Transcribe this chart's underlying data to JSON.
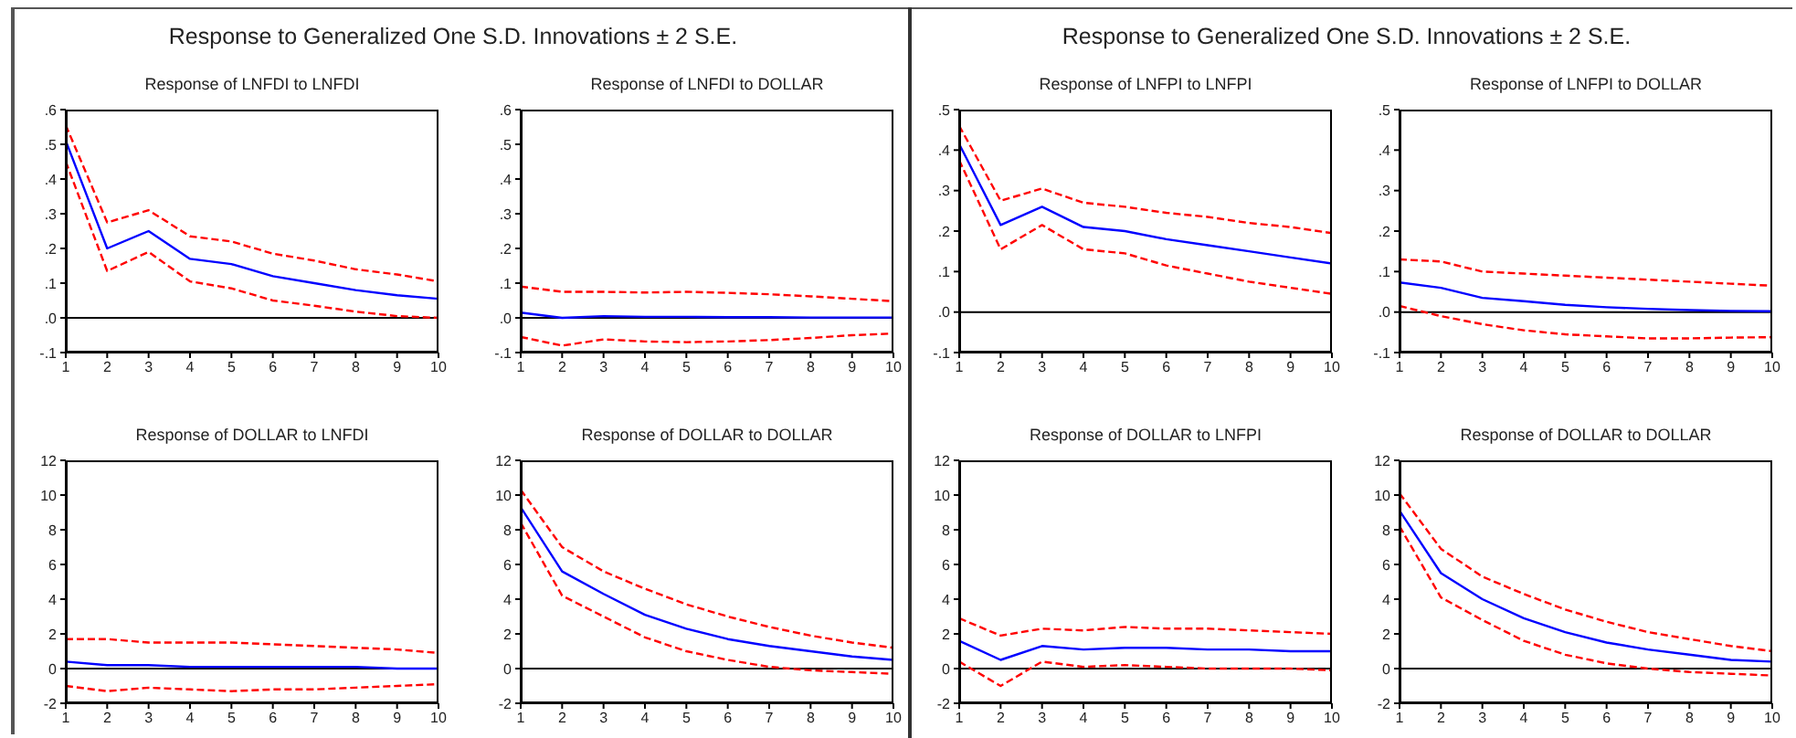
{
  "chart_data": [
    {
      "type": "line",
      "title": "Response of LNFDI to LNFDI",
      "annotations": [
        "Response to Generalized One S.D. Innovations ± 2 S.E."
      ],
      "x": [
        1,
        2,
        3,
        4,
        5,
        6,
        7,
        8,
        9,
        10
      ],
      "xlim": [
        1,
        10
      ],
      "xticks": [
        1,
        2,
        3,
        4,
        5,
        6,
        7,
        8,
        9,
        10
      ],
      "ylim": [
        -0.1,
        0.6
      ],
      "yticks": [
        {
          "value": -0.1,
          "label": "-.1"
        },
        {
          "value": 0,
          "label": ".0"
        },
        {
          "value": 0.1,
          "label": ".1"
        },
        {
          "value": 0.2,
          "label": ".2"
        },
        {
          "value": 0.3,
          "label": ".3"
        },
        {
          "value": 0.4,
          "label": ".4"
        },
        {
          "value": 0.5,
          "label": ".5"
        },
        {
          "value": 0.6,
          "label": ".6"
        }
      ],
      "ref_lines": [
        {
          "axis": "y",
          "value": 0,
          "color": "#000000"
        }
      ],
      "series": [
        {
          "color": "#0000ff",
          "line_style": "solid",
          "values": [
            0.51,
            0.2,
            0.25,
            0.17,
            0.155,
            0.12,
            0.1,
            0.08,
            0.065,
            0.055
          ]
        },
        {
          "color": "#ff0000",
          "line_style": "dashed",
          "values": [
            0.555,
            0.275,
            0.31,
            0.235,
            0.22,
            0.185,
            0.165,
            0.14,
            0.125,
            0.105
          ]
        },
        {
          "color": "#ff0000",
          "line_style": "dashed",
          "values": [
            0.45,
            0.135,
            0.19,
            0.105,
            0.085,
            0.05,
            0.035,
            0.018,
            0.005,
            0
          ]
        }
      ]
    },
    {
      "type": "line",
      "title": "Response of LNFDI to DOLLAR",
      "x": [
        1,
        2,
        3,
        4,
        5,
        6,
        7,
        8,
        9,
        10
      ],
      "xlim": [
        1,
        10
      ],
      "xticks": [
        1,
        2,
        3,
        4,
        5,
        6,
        7,
        8,
        9,
        10
      ],
      "ylim": [
        -0.1,
        0.6
      ],
      "yticks": [
        {
          "value": -0.1,
          "label": "-.1"
        },
        {
          "value": 0,
          "label": ".0"
        },
        {
          "value": 0.1,
          "label": ".1"
        },
        {
          "value": 0.2,
          "label": ".2"
        },
        {
          "value": 0.3,
          "label": ".3"
        },
        {
          "value": 0.4,
          "label": ".4"
        },
        {
          "value": 0.5,
          "label": ".5"
        },
        {
          "value": 0.6,
          "label": ".6"
        }
      ],
      "ref_lines": [
        {
          "axis": "y",
          "value": 0,
          "color": "#000000"
        }
      ],
      "series": [
        {
          "color": "#0000ff",
          "line_style": "solid",
          "values": [
            0.015,
            0,
            0.005,
            0.003,
            0.003,
            0.002,
            0.002,
            0.001,
            0.001,
            0.001
          ]
        },
        {
          "color": "#ff0000",
          "line_style": "dashed",
          "values": [
            0.09,
            0.075,
            0.075,
            0.073,
            0.075,
            0.072,
            0.068,
            0.062,
            0.055,
            0.048
          ]
        },
        {
          "color": "#ff0000",
          "line_style": "dashed",
          "values": [
            -0.055,
            -0.08,
            -0.062,
            -0.068,
            -0.07,
            -0.068,
            -0.064,
            -0.058,
            -0.05,
            -0.045
          ]
        }
      ]
    },
    {
      "type": "line",
      "title": "Response of DOLLAR to LNFDI",
      "x": [
        1,
        2,
        3,
        4,
        5,
        6,
        7,
        8,
        9,
        10
      ],
      "xlim": [
        1,
        10
      ],
      "xticks": [
        1,
        2,
        3,
        4,
        5,
        6,
        7,
        8,
        9,
        10
      ],
      "ylim": [
        -2,
        12
      ],
      "yticks": [
        -2,
        0,
        2,
        4,
        6,
        8,
        10,
        12
      ],
      "ref_lines": [
        {
          "axis": "y",
          "value": 0,
          "color": "#000000"
        }
      ],
      "series": [
        {
          "color": "#0000ff",
          "line_style": "solid",
          "values": [
            0.4,
            0.2,
            0.2,
            0.1,
            0.1,
            0.1,
            0.1,
            0.1,
            0,
            0
          ]
        },
        {
          "color": "#ff0000",
          "line_style": "dashed",
          "values": [
            1.7,
            1.7,
            1.5,
            1.5,
            1.5,
            1.4,
            1.3,
            1.2,
            1.1,
            0.9
          ]
        },
        {
          "color": "#ff0000",
          "line_style": "dashed",
          "values": [
            -1,
            -1.3,
            -1.1,
            -1.2,
            -1.3,
            -1.2,
            -1.2,
            -1.1,
            -1,
            -0.9
          ]
        }
      ]
    },
    {
      "type": "line",
      "title": "Response of DOLLAR to DOLLAR",
      "x": [
        1,
        2,
        3,
        4,
        5,
        6,
        7,
        8,
        9,
        10
      ],
      "xlim": [
        1,
        10
      ],
      "xticks": [
        1,
        2,
        3,
        4,
        5,
        6,
        7,
        8,
        9,
        10
      ],
      "ylim": [
        -2,
        12
      ],
      "yticks": [
        -2,
        0,
        2,
        4,
        6,
        8,
        10,
        12
      ],
      "ref_lines": [
        {
          "axis": "y",
          "value": 0,
          "color": "#000000"
        }
      ],
      "series": [
        {
          "color": "#0000ff",
          "line_style": "solid",
          "values": [
            9.3,
            5.6,
            4.3,
            3.1,
            2.3,
            1.7,
            1.3,
            1,
            0.7,
            0.5
          ]
        },
        {
          "color": "#ff0000",
          "line_style": "dashed",
          "values": [
            10.3,
            7,
            5.6,
            4.6,
            3.7,
            3,
            2.4,
            1.9,
            1.5,
            1.2
          ]
        },
        {
          "color": "#ff0000",
          "line_style": "dashed",
          "values": [
            8.4,
            4.2,
            3,
            1.8,
            1,
            0.5,
            0.1,
            -0.1,
            -0.2,
            -0.3
          ]
        }
      ]
    },
    {
      "type": "line",
      "title": "Response of LNFPI to LNFPI",
      "annotations": [
        "Response to Generalized One S.D. Innovations ± 2 S.E."
      ],
      "x": [
        1,
        2,
        3,
        4,
        5,
        6,
        7,
        8,
        9,
        10
      ],
      "xlim": [
        1,
        10
      ],
      "xticks": [
        1,
        2,
        3,
        4,
        5,
        6,
        7,
        8,
        9,
        10
      ],
      "ylim": [
        -0.1,
        0.5
      ],
      "yticks": [
        {
          "value": -0.1,
          "label": "-.1"
        },
        {
          "value": 0,
          "label": ".0"
        },
        {
          "value": 0.1,
          "label": ".1"
        },
        {
          "value": 0.2,
          "label": ".2"
        },
        {
          "value": 0.3,
          "label": ".3"
        },
        {
          "value": 0.4,
          "label": ".4"
        },
        {
          "value": 0.5,
          "label": ".5"
        }
      ],
      "ref_lines": [
        {
          "axis": "y",
          "value": 0,
          "color": "#000000"
        }
      ],
      "series": [
        {
          "color": "#0000ff",
          "line_style": "solid",
          "values": [
            0.415,
            0.215,
            0.26,
            0.21,
            0.2,
            0.18,
            0.165,
            0.15,
            0.135,
            0.12
          ]
        },
        {
          "color": "#ff0000",
          "line_style": "dashed",
          "values": [
            0.46,
            0.275,
            0.305,
            0.27,
            0.26,
            0.245,
            0.235,
            0.22,
            0.21,
            0.195
          ]
        },
        {
          "color": "#ff0000",
          "line_style": "dashed",
          "values": [
            0.375,
            0.155,
            0.215,
            0.155,
            0.145,
            0.115,
            0.095,
            0.075,
            0.06,
            0.045
          ]
        }
      ]
    },
    {
      "type": "line",
      "title": "Response of LNFPI to DOLLAR",
      "x": [
        1,
        2,
        3,
        4,
        5,
        6,
        7,
        8,
        9,
        10
      ],
      "xlim": [
        1,
        10
      ],
      "xticks": [
        1,
        2,
        3,
        4,
        5,
        6,
        7,
        8,
        9,
        10
      ],
      "ylim": [
        -0.1,
        0.5
      ],
      "yticks": [
        {
          "value": -0.1,
          "label": "-.1"
        },
        {
          "value": 0,
          "label": ".0"
        },
        {
          "value": 0.1,
          "label": ".1"
        },
        {
          "value": 0.2,
          "label": ".2"
        },
        {
          "value": 0.3,
          "label": ".3"
        },
        {
          "value": 0.4,
          "label": ".4"
        },
        {
          "value": 0.5,
          "label": ".5"
        }
      ],
      "ref_lines": [
        {
          "axis": "y",
          "value": 0,
          "color": "#000000"
        }
      ],
      "series": [
        {
          "color": "#0000ff",
          "line_style": "solid",
          "values": [
            0.073,
            0.06,
            0.035,
            0.027,
            0.018,
            0.012,
            0.008,
            0.005,
            0.003,
            0.002
          ]
        },
        {
          "color": "#ff0000",
          "line_style": "dashed",
          "values": [
            0.13,
            0.125,
            0.1,
            0.095,
            0.09,
            0.085,
            0.08,
            0.075,
            0.07,
            0.065
          ]
        },
        {
          "color": "#ff0000",
          "line_style": "dashed",
          "values": [
            0.015,
            -0.01,
            -0.03,
            -0.045,
            -0.055,
            -0.06,
            -0.065,
            -0.065,
            -0.063,
            -0.062
          ]
        }
      ]
    },
    {
      "type": "line",
      "title": "Response of DOLLAR to LNFPI",
      "x": [
        1,
        2,
        3,
        4,
        5,
        6,
        7,
        8,
        9,
        10
      ],
      "xlim": [
        1,
        10
      ],
      "xticks": [
        1,
        2,
        3,
        4,
        5,
        6,
        7,
        8,
        9,
        10
      ],
      "ylim": [
        -2,
        12
      ],
      "yticks": [
        -2,
        0,
        2,
        4,
        6,
        8,
        10,
        12
      ],
      "ref_lines": [
        {
          "axis": "y",
          "value": 0,
          "color": "#000000"
        }
      ],
      "series": [
        {
          "color": "#0000ff",
          "line_style": "solid",
          "values": [
            1.6,
            0.5,
            1.3,
            1.1,
            1.2,
            1.2,
            1.1,
            1.1,
            1,
            1
          ]
        },
        {
          "color": "#ff0000",
          "line_style": "dashed",
          "values": [
            2.9,
            1.9,
            2.3,
            2.2,
            2.4,
            2.3,
            2.3,
            2.2,
            2.1,
            2
          ]
        },
        {
          "color": "#ff0000",
          "line_style": "dashed",
          "values": [
            0.4,
            -1,
            0.4,
            0.1,
            0.2,
            0.1,
            0,
            0,
            0,
            -0.1
          ]
        }
      ]
    },
    {
      "type": "line",
      "title": "Response of DOLLAR to DOLLAR",
      "x": [
        1,
        2,
        3,
        4,
        5,
        6,
        7,
        8,
        9,
        10
      ],
      "xlim": [
        1,
        10
      ],
      "xticks": [
        1,
        2,
        3,
        4,
        5,
        6,
        7,
        8,
        9,
        10
      ],
      "ylim": [
        -2,
        12
      ],
      "yticks": [
        -2,
        0,
        2,
        4,
        6,
        8,
        10,
        12
      ],
      "ref_lines": [
        {
          "axis": "y",
          "value": 0,
          "color": "#000000"
        }
      ],
      "series": [
        {
          "color": "#0000ff",
          "line_style": "solid",
          "values": [
            9.1,
            5.5,
            4,
            2.9,
            2.1,
            1.5,
            1.1,
            0.8,
            0.5,
            0.4
          ]
        },
        {
          "color": "#ff0000",
          "line_style": "dashed",
          "values": [
            10.1,
            6.9,
            5.3,
            4.3,
            3.4,
            2.7,
            2.1,
            1.7,
            1.3,
            1
          ]
        },
        {
          "color": "#ff0000",
          "line_style": "dashed",
          "values": [
            8.2,
            4.1,
            2.8,
            1.6,
            0.8,
            0.3,
            0,
            -0.2,
            -0.3,
            -0.4
          ]
        }
      ]
    }
  ]
}
